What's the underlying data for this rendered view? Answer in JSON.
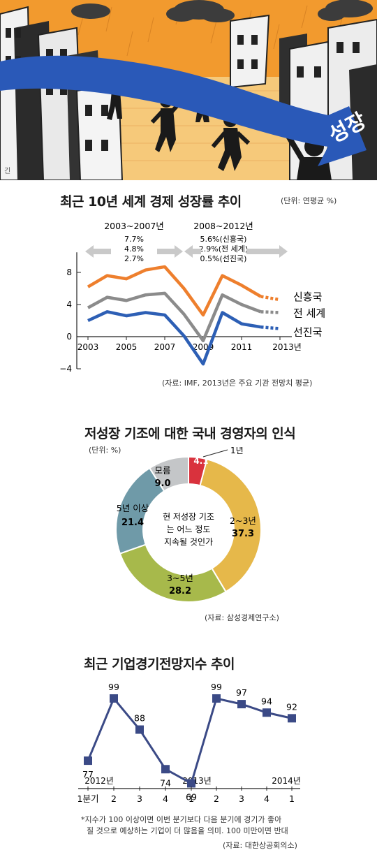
{
  "illustration": {
    "banner_text": "성장",
    "signature": "긴"
  },
  "colors": {
    "emerging": "#ee7f2d",
    "world": "#8b8b8b",
    "advanced": "#2d5fb5",
    "sky": "#f29a2e",
    "ground": "#f6c97a",
    "banner": "#2a59b8",
    "index_line": "#3b4a86"
  },
  "growth_chart": {
    "title": "최근 10년 세계 경제 성장률 추이",
    "unit": "(단위: 연평균 %)",
    "source": "(자료: IMF, 2013년은 주요 기관 전망치 평균)",
    "period1": {
      "label": "2003~2007년",
      "values": [
        "7.7%",
        "4.8%",
        "2.7%"
      ]
    },
    "period2": {
      "label": "2008~2012년",
      "values": [
        "5.6%(신흥국)",
        "2.9%(전 세계)",
        "0.5%(선진국)"
      ]
    },
    "x_ticks": [
      "2003",
      "2005",
      "2007",
      "2009",
      "2011",
      "2013년"
    ],
    "y_ticks": [
      "8",
      "4",
      "0",
      "−4"
    ]
  },
  "ceo_chart": {
    "title": "저성장 기조에 대한 국내 경영자의 인식",
    "unit": "(단위: %)",
    "center_text": [
      "현 저성장 기조",
      "는 어느 정도",
      "지속될 것인가"
    ],
    "source": "(자료: 삼성경제연구소)"
  },
  "bsi_chart": {
    "title": "최근 기업경기전망지수 추이",
    "year_labels": [
      "2012년",
      "2013년",
      "2014년"
    ],
    "note_lines": [
      "*지수가 100 이상이면 이번 분기보다 다음 분기에 경기가 좋아",
      "질 것으로 예상하는 기업이 더 많음을 의미. 100 미만이면 반대"
    ],
    "source": "(자료: 대한상공회의소)"
  },
  "chart_data": [
    {
      "type": "line",
      "title": "최근 10년 세계 경제 성장률 추이",
      "x": [
        2003,
        2004,
        2005,
        2006,
        2007,
        2008,
        2009,
        2010,
        2011,
        2012,
        2013
      ],
      "ylim": [
        -4,
        10
      ],
      "y_ticks": [
        8,
        4,
        0,
        -4
      ],
      "grid": false,
      "legend": "right, at line ends",
      "forecast_from": 2012,
      "series": [
        {
          "name": "신흥국",
          "color": "#ee7f2d",
          "values": [
            6.2,
            7.6,
            7.2,
            8.3,
            8.7,
            6.0,
            2.7,
            7.6,
            6.4,
            5.0,
            4.6
          ]
        },
        {
          "name": "전 세계",
          "color": "#8b8b8b",
          "values": [
            3.6,
            4.9,
            4.5,
            5.2,
            5.4,
            2.8,
            -0.5,
            5.2,
            4.0,
            3.1,
            3.0
          ]
        },
        {
          "name": "선진국",
          "color": "#2d5fb5",
          "values": [
            2.0,
            3.1,
            2.6,
            3.0,
            2.7,
            0.1,
            -3.4,
            3.0,
            1.6,
            1.2,
            1.0
          ]
        }
      ]
    },
    {
      "type": "pie",
      "title": "저성장 기조에 대한 국내 경영자의 인식",
      "donut": true,
      "slices": [
        {
          "label": "1년",
          "value": 4.1,
          "color": "#d9323d"
        },
        {
          "label": "2~3년",
          "value": 37.3,
          "color": "#e6b84a"
        },
        {
          "label": "3~5년",
          "value": 28.2,
          "color": "#a7b94b"
        },
        {
          "label": "5년 이상",
          "value": 21.4,
          "color": "#6f9aa8"
        },
        {
          "label": "모름",
          "value": 9.0,
          "color": "#c4c6c8"
        }
      ]
    },
    {
      "type": "line",
      "title": "최근 기업경기전망지수 추이",
      "x": [
        "1분기",
        "2",
        "3",
        "4",
        "1",
        "2",
        "3",
        "4",
        "1"
      ],
      "values": [
        77,
        99,
        88,
        74,
        69,
        99,
        97,
        94,
        92
      ],
      "ylim": [
        65,
        102
      ],
      "markers": "square"
    }
  ]
}
